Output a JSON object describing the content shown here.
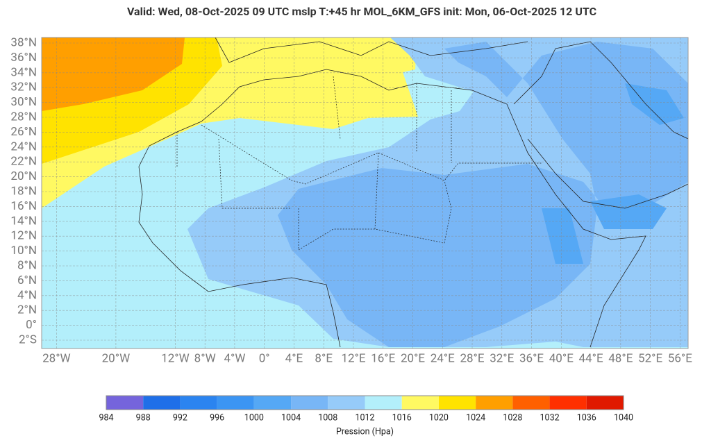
{
  "header": {
    "title": "Valid: Wed, 08-Oct-2025   09 UTC   mslp   T:+45 hr   MOL_6KM_GFS      init: Mon, 06-Oct-2025   12 UTC"
  },
  "map": {
    "lat_ticks": [
      {
        "value": 38,
        "label": "38°N"
      },
      {
        "value": 36,
        "label": "36°N"
      },
      {
        "value": 34,
        "label": "34°N"
      },
      {
        "value": 32,
        "label": "32°N"
      },
      {
        "value": 30,
        "label": "30°N"
      },
      {
        "value": 28,
        "label": "28°N"
      },
      {
        "value": 26,
        "label": "26°N"
      },
      {
        "value": 24,
        "label": "24°N"
      },
      {
        "value": 22,
        "label": "22°N"
      },
      {
        "value": 20,
        "label": "20°N"
      },
      {
        "value": 18,
        "label": "18°N"
      },
      {
        "value": 16,
        "label": "16°N"
      },
      {
        "value": 14,
        "label": "14°N"
      },
      {
        "value": 12,
        "label": "12°N"
      },
      {
        "value": 10,
        "label": "10°N"
      },
      {
        "value": 8,
        "label": "8°N"
      },
      {
        "value": 6,
        "label": "6°N"
      },
      {
        "value": 4,
        "label": "4°N"
      },
      {
        "value": 2,
        "label": "2°N"
      },
      {
        "value": 0,
        "label": "0°"
      },
      {
        "value": -2,
        "label": "2°S"
      }
    ],
    "lon_ticks": [
      {
        "value": -28,
        "label": "28°W"
      },
      {
        "value": -20,
        "label": "20°W"
      },
      {
        "value": -12,
        "label": "12°W"
      },
      {
        "value": -8,
        "label": "8°W"
      },
      {
        "value": -4,
        "label": "4°W"
      },
      {
        "value": 0,
        "label": "0°"
      },
      {
        "value": 4,
        "label": "4°E"
      },
      {
        "value": 8,
        "label": "8°E"
      },
      {
        "value": 12,
        "label": "12°E"
      },
      {
        "value": 16,
        "label": "16°E"
      },
      {
        "value": 20,
        "label": "20°E"
      },
      {
        "value": 24,
        "label": "24°E"
      },
      {
        "value": 28,
        "label": "28°E"
      },
      {
        "value": 32,
        "label": "32°E"
      },
      {
        "value": 36,
        "label": "36°E"
      },
      {
        "value": 40,
        "label": "40°E"
      },
      {
        "value": 44,
        "label": "44°E"
      },
      {
        "value": 48,
        "label": "48°E"
      },
      {
        "value": 52,
        "label": "52°E"
      },
      {
        "value": 56,
        "label": "56°E"
      }
    ]
  },
  "colorbar": {
    "label": "Pression (Hpa)",
    "ticks": [
      984,
      988,
      992,
      996,
      1000,
      1004,
      1008,
      1012,
      1016,
      1020,
      1024,
      1028,
      1032,
      1036,
      1040
    ],
    "colors": [
      "#7564dc",
      "#1f6fe8",
      "#2b84f0",
      "#3b95f3",
      "#55a8f5",
      "#78b6f6",
      "#96cbf9",
      "#b3effb",
      "#fff962",
      "#ffe300",
      "#ff9f00",
      "#ff6000",
      "#ff3000",
      "#e01a00"
    ]
  }
}
